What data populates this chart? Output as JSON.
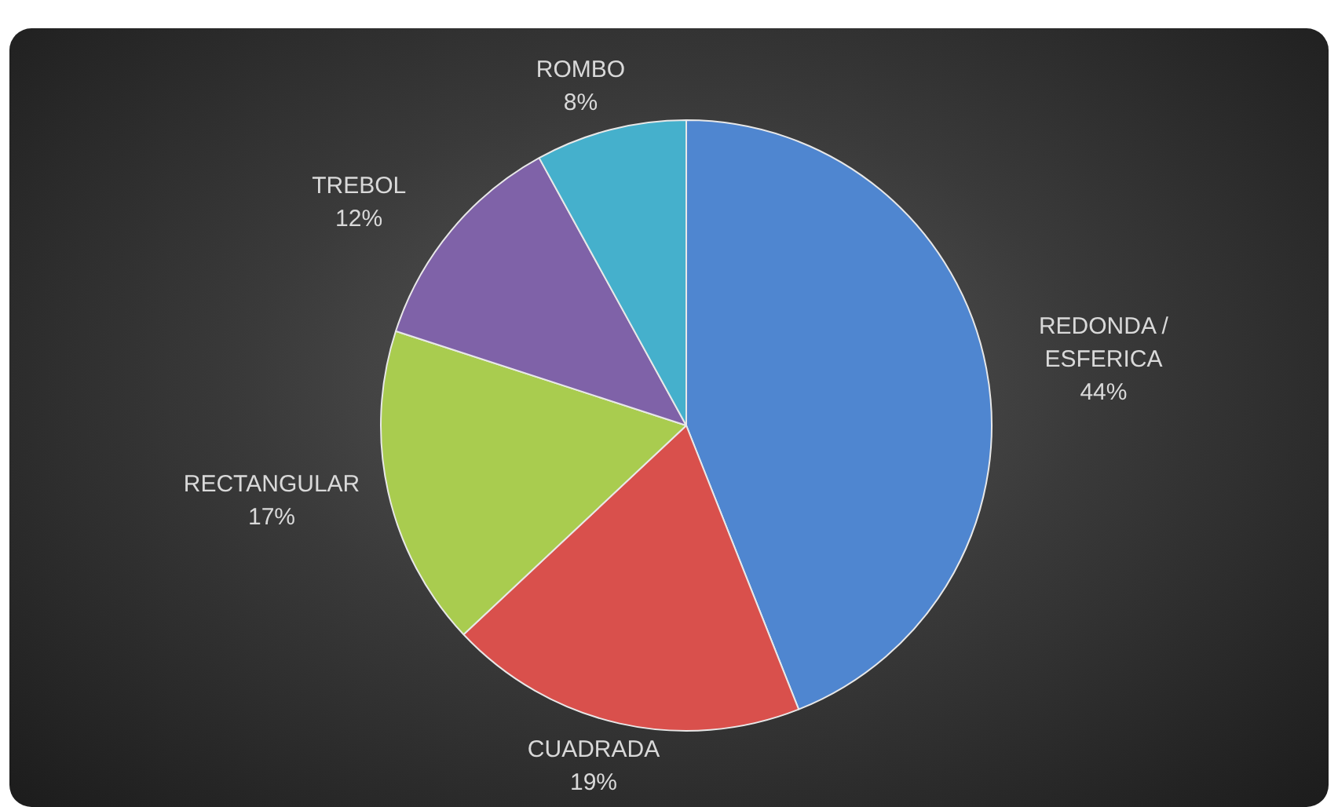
{
  "chart_data": {
    "type": "pie",
    "categories": [
      "REDONDA / ESFERICA",
      "CUADRADA",
      "RECTANGULAR",
      "TREBOL",
      "ROMBO"
    ],
    "values": [
      44,
      19,
      17,
      12,
      8
    ],
    "colors": [
      "#4f86d0",
      "#d9504c",
      "#a9cc4f",
      "#7f62a8",
      "#45b0cc"
    ],
    "value_labels": [
      "44%",
      "19%",
      "17%",
      "12%",
      "8%"
    ],
    "legend": false
  }
}
